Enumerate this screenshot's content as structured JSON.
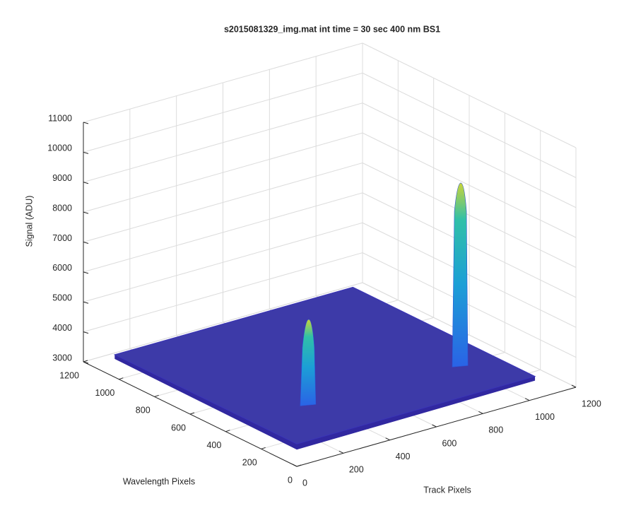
{
  "chart_data": {
    "type": "surface",
    "title": "s2015081329_img.mat int time = 30 sec  400 nm BS1",
    "xlabel": "Track Pixels",
    "ylabel": "Wavelength Pixels",
    "zlabel": "Signal (ADU)",
    "xlim": [
      0,
      1200
    ],
    "ylim": [
      0,
      1200
    ],
    "zlim": [
      3000,
      11000
    ],
    "xticks": [
      0,
      200,
      400,
      600,
      800,
      1000,
      1200
    ],
    "yticks": [
      0,
      200,
      400,
      600,
      800,
      1000,
      1200
    ],
    "zticks": [
      3000,
      4000,
      5000,
      6000,
      7000,
      8000,
      9000,
      10000,
      11000
    ],
    "grid": true,
    "color": "#3d3aa8",
    "extent": [
      1024,
      1024
    ],
    "base_level": 3750,
    "peaks": {
      "x": [
        260,
        890
      ],
      "y": [
        273,
        242
      ],
      "z": [
        6540,
        9800
      ]
    }
  }
}
